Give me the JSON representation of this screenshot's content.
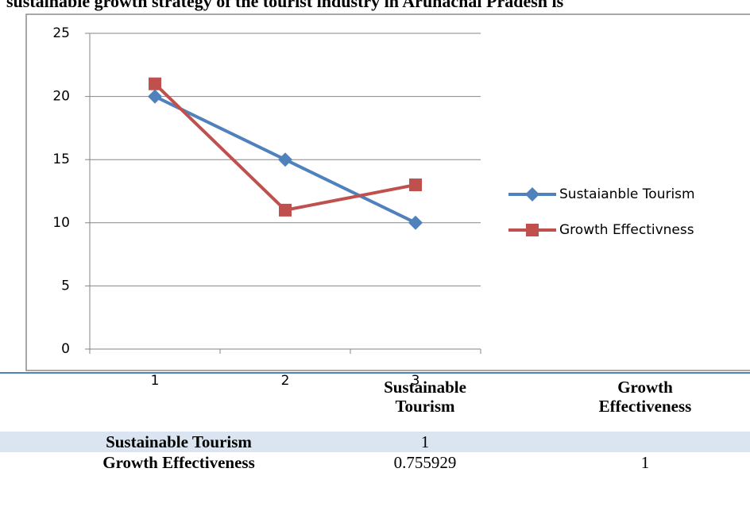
{
  "chart_data": {
    "type": "line",
    "title": "sustainable growth strategy of the tourist industry in Arunachal Pradesh is",
    "categories": [
      "1",
      "2",
      "3"
    ],
    "series": [
      {
        "name": "Sustaianble Tourism",
        "color": "#4f81bd",
        "marker": "diamond",
        "values": [
          20,
          15,
          10
        ]
      },
      {
        "name": "Growth Effectivness",
        "color": "#c0504d",
        "marker": "square",
        "values": [
          21,
          11,
          13
        ]
      }
    ],
    "ylim": [
      0,
      25
    ],
    "yticks": [
      0,
      5,
      10,
      15,
      20,
      25
    ],
    "grid": true,
    "legend": "right"
  },
  "table": {
    "header": [
      "Sustainable Tourism",
      "Growth Effectiveness"
    ],
    "rows": [
      {
        "label": "Sustainable Tourism",
        "cells": [
          1
        ]
      },
      {
        "label": "Growth Effectiveness",
        "cells": [
          0.755929,
          1
        ]
      }
    ]
  }
}
